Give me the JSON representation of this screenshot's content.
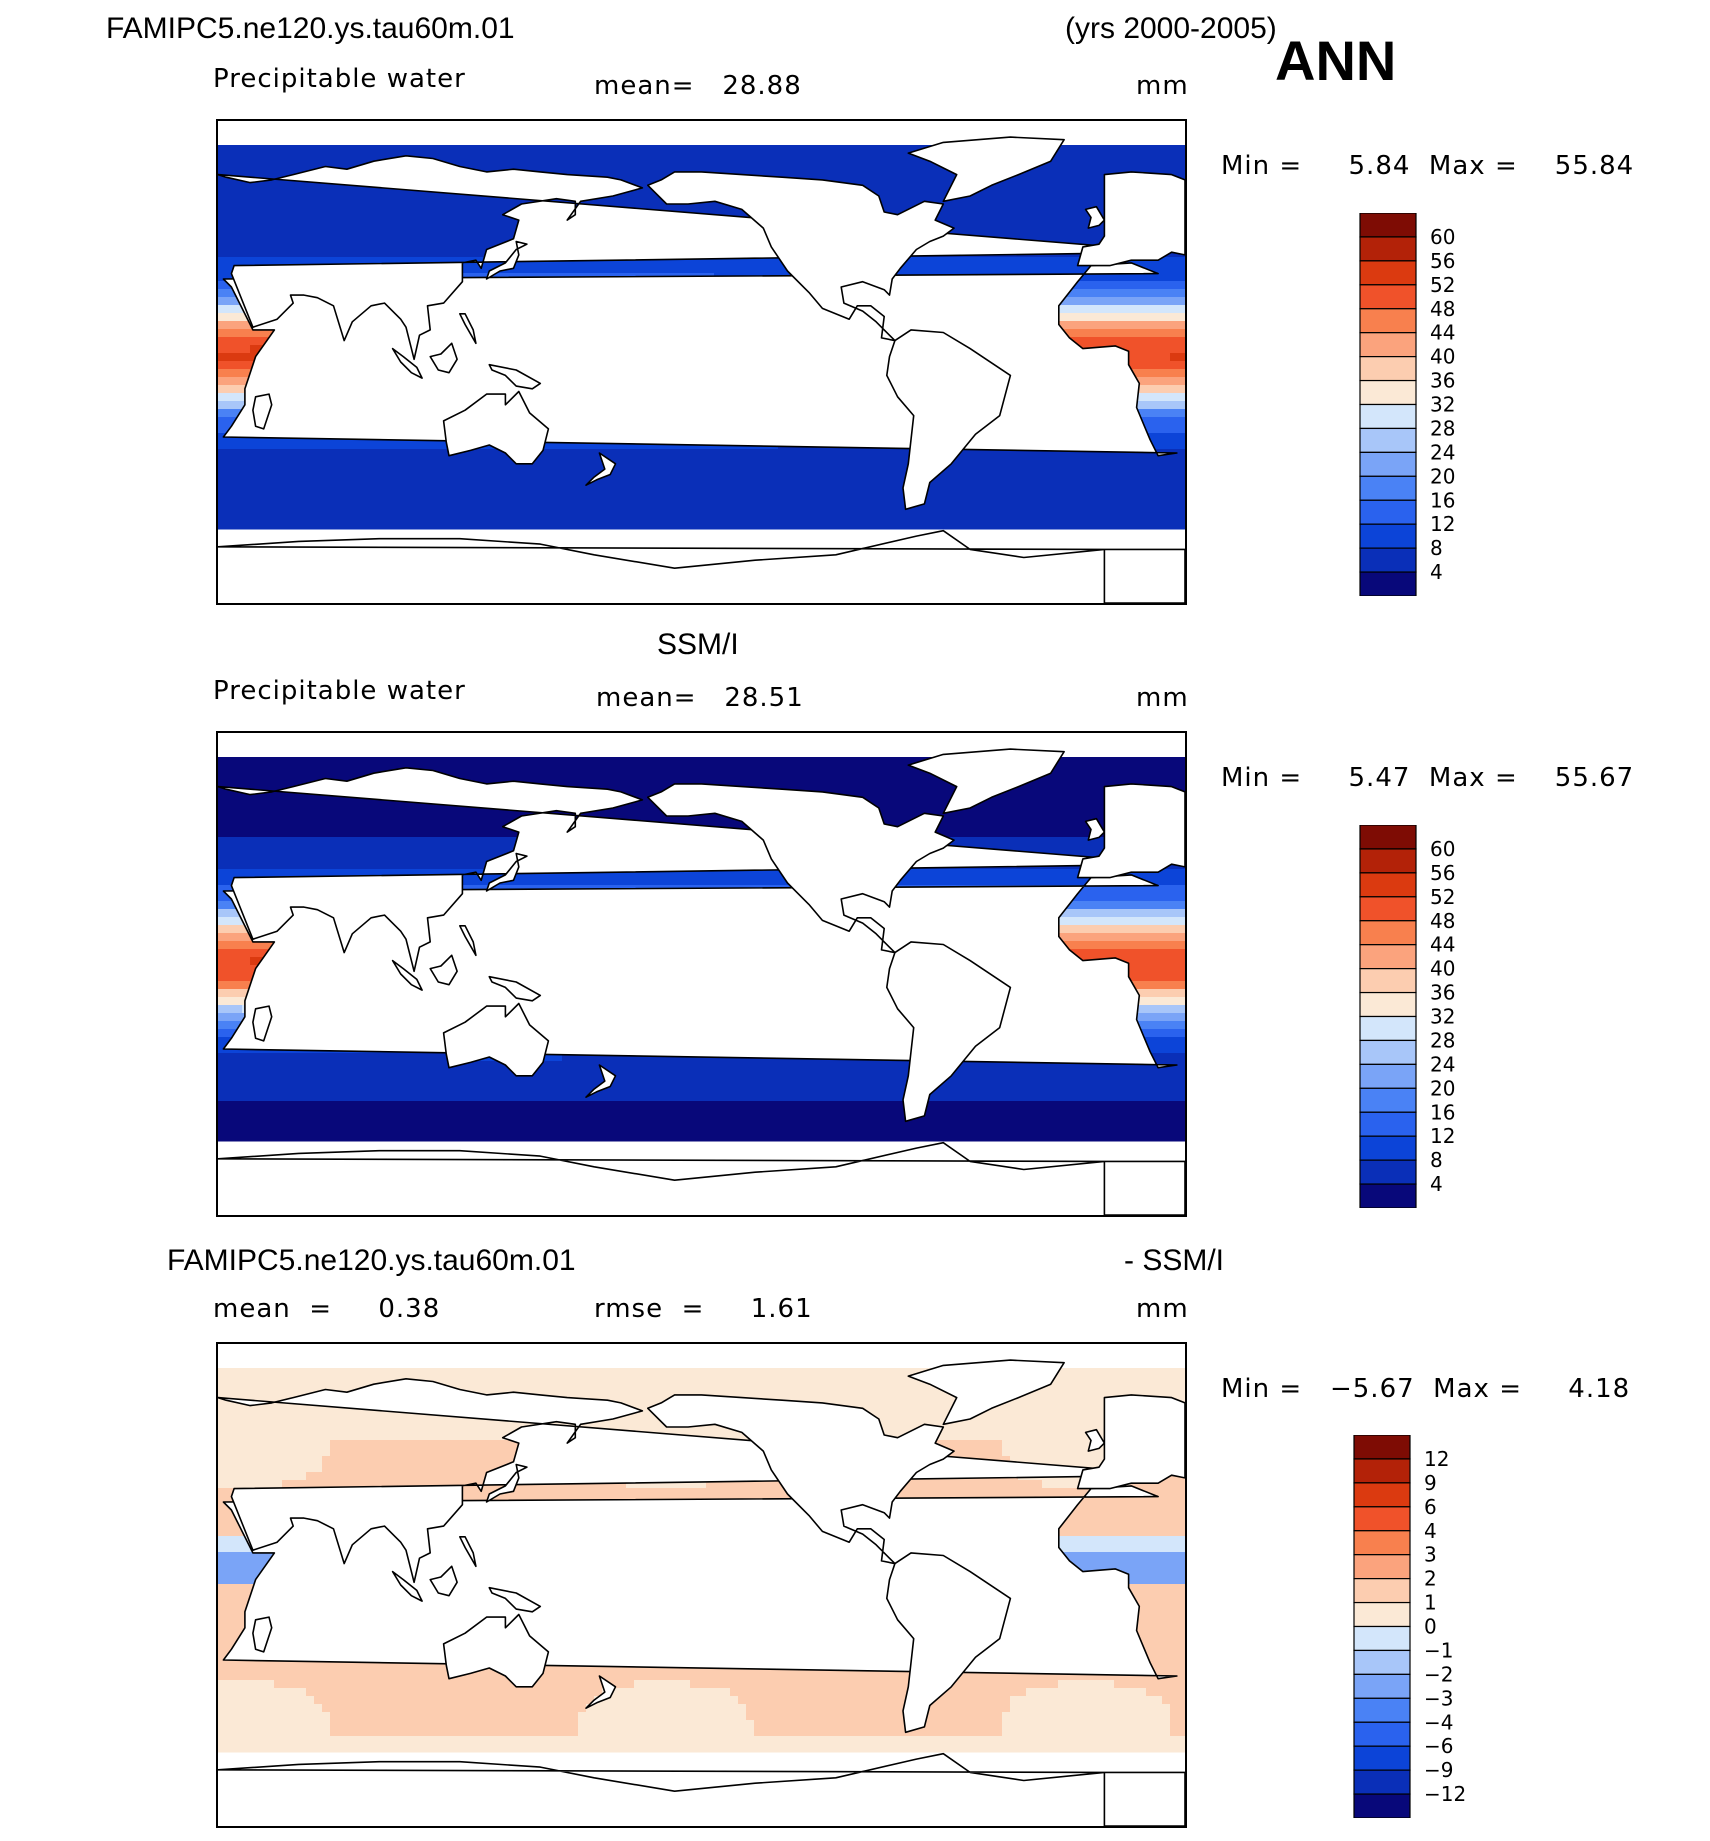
{
  "header": {
    "case_name": "FAMIPC5.ne120.ys.tau60m.01",
    "years": "(yrs 2000-2005)",
    "season": "ANN"
  },
  "panels": [
    {
      "id": "model",
      "title": "",
      "variable": "Precipitable water",
      "stat_text": "mean=   28.88",
      "units": "mm",
      "minmax": "Min =     5.84  Max =    55.84",
      "field": "model",
      "colorbar": {
        "labels": [
          "60",
          "56",
          "52",
          "48",
          "44",
          "40",
          "36",
          "32",
          "28",
          "24",
          "20",
          "16",
          "12",
          "8",
          "4"
        ]
      }
    },
    {
      "id": "obs",
      "title": "SSM/I",
      "variable": "Precipitable water",
      "stat_text": "mean=   28.51",
      "units": "mm",
      "minmax": "Min =     5.47  Max =    55.67",
      "field": "obs",
      "colorbar": {
        "labels": [
          "60",
          "56",
          "52",
          "48",
          "44",
          "40",
          "36",
          "32",
          "28",
          "24",
          "20",
          "16",
          "12",
          "8",
          "4"
        ]
      }
    },
    {
      "id": "diff",
      "title_left": "FAMIPC5.ne120.ys.tau60m.01",
      "title_right": "- SSM/I",
      "mean_text": "mean  =     0.38",
      "rmse_text": "rmse  =     1.61",
      "units": "mm",
      "minmax": "Min =   −5.67  Max =     4.18",
      "field": "diff",
      "colorbar": {
        "labels": [
          "12",
          "9",
          "6",
          "4",
          "3",
          "2",
          "1",
          "0",
          "−1",
          "−2",
          "−3",
          "−4",
          "−6",
          "−9",
          "−12"
        ]
      }
    }
  ],
  "colors": {
    "scale": [
      "#08087a",
      "#0a2fb8",
      "#0c44d8",
      "#2a62ee",
      "#4a82f5",
      "#7aa4f7",
      "#a8c6f9",
      "#d3e6fb",
      "#fbe9d6",
      "#fccdb0",
      "#fba37d",
      "#f8804e",
      "#f0522a",
      "#db3a10",
      "#b32208",
      "#7e0c04"
    ],
    "land": "#ffffff",
    "coast": "#000000"
  }
}
